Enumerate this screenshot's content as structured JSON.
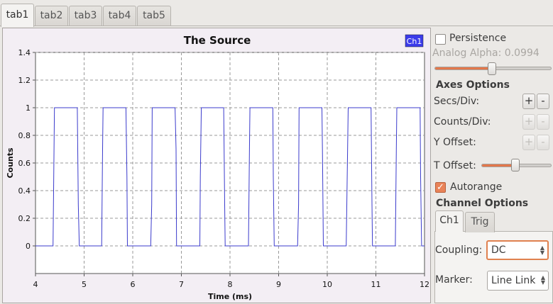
{
  "tabs": [
    {
      "label": "tab1",
      "active": true
    },
    {
      "label": "tab2",
      "active": false
    },
    {
      "label": "tab3",
      "active": false
    },
    {
      "label": "tab4",
      "active": false
    },
    {
      "label": "tab5",
      "active": false
    }
  ],
  "plot": {
    "title": "The Source",
    "legend_label": "Ch1",
    "line_color": "#3b3bcc",
    "legend_bg": "#3b3bea"
  },
  "chart_data": {
    "type": "line",
    "title": "The Source",
    "xlabel": "Time (ms)",
    "ylabel": "Counts",
    "xlim": [
      4,
      12
    ],
    "ylim": [
      -0.2,
      1.4
    ],
    "xticks": [
      "4",
      "5",
      "6",
      "7",
      "8",
      "9",
      "10",
      "11",
      "12"
    ],
    "yticks": [
      "0",
      "0.2",
      "0.4",
      "0.6",
      "0.8",
      "1",
      "1.2",
      "1.4"
    ],
    "grid": true,
    "legend": "top-right",
    "series": [
      {
        "name": "Ch1",
        "x": [
          4.0,
          4.36,
          4.37,
          4.39,
          4.86,
          4.88,
          4.9,
          5.36,
          5.38,
          5.39,
          5.86,
          5.88,
          5.89,
          6.37,
          6.39,
          6.4,
          6.87,
          6.89,
          6.9,
          7.38,
          7.39,
          7.41,
          7.87,
          7.89,
          7.9,
          8.38,
          8.4,
          8.41,
          8.88,
          8.89,
          8.91,
          9.39,
          9.41,
          9.42,
          9.89,
          9.9,
          9.92,
          10.39,
          10.41,
          10.43,
          10.9,
          10.92,
          10.93,
          11.4,
          11.42,
          11.43,
          11.91,
          11.92,
          11.94,
          12.0
        ],
        "y": [
          0,
          0,
          0.3,
          1,
          1,
          0.3,
          0,
          0,
          0.7,
          1,
          1,
          0.5,
          0,
          0,
          0.3,
          1,
          1,
          0.7,
          0,
          0,
          0.5,
          1,
          1,
          0.3,
          0,
          0,
          0.7,
          1,
          1,
          0.5,
          0,
          0,
          0.3,
          1,
          1,
          0.7,
          0,
          0,
          0.5,
          1,
          1,
          0.3,
          0,
          0,
          0.7,
          1,
          1,
          0.5,
          0,
          0
        ]
      }
    ]
  },
  "controls": {
    "persistence_label": "Persistence",
    "persistence_checked": false,
    "analog_alpha_label": "Analog Alpha: 0.0994",
    "analog_alpha_value": 0.0994,
    "axes_title": "Axes Options",
    "secs_div_label": "Secs/Div:",
    "counts_div_label": "Counts/Div:",
    "y_offset_label": "Y Offset:",
    "t_offset_label": "T Offset:",
    "t_offset_fraction": 0.5,
    "plus": "+",
    "minus": "-",
    "autorange_label": "Autorange",
    "autorange_checked": true,
    "check_mark": "✓",
    "channel_title": "Channel Options",
    "inner_tabs": [
      {
        "label": "Ch1",
        "active": true
      },
      {
        "label": "Trig",
        "active": false
      }
    ],
    "coupling_label": "Coupling:",
    "coupling_value": "DC",
    "marker_label": "Marker:",
    "marker_value": "Line Link"
  }
}
